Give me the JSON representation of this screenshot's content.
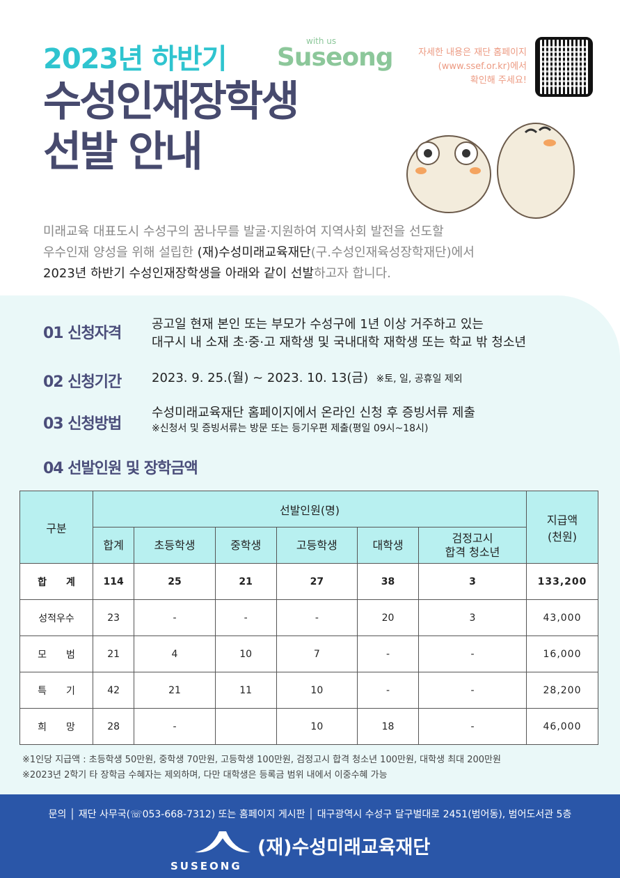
{
  "header": {
    "subtitle": "2023년 하반기",
    "brand_small": "with us",
    "brand": "Suseong",
    "title_line1": "수성인재장학생",
    "title_line2": "선발 안내",
    "notice": [
      "자세한 내용은 재단 홈페이지",
      "(www.ssef.or.kr)에서",
      "확인해 주세요!"
    ]
  },
  "intro": {
    "line1": "미래교육 대표도시 수성구의 꿈나무를 발굴·지원하여 지역사회 발전을 선도할",
    "line2a": "우수인재 양성을 위해 설립한 ",
    "line2b": "(재)수성미래교육재단",
    "line2c": "(구.수성인재육성장학재단)에서",
    "line3a": "2023년 하반기 수성인재장학생을 아래와 같이 선발",
    "line3b": "하고자 합니다."
  },
  "sections": [
    {
      "title": "01 신청자격",
      "lines": [
        "공고일 현재 본인 또는 부모가 수성구에 1년 이상 거주하고 있는",
        "대구시 내 소재 초·중·고 재학생 및 국내대학 재학생 또는 학교 밖 청소년"
      ]
    },
    {
      "title": "02 신청기간",
      "lines": [
        "2023. 9. 25.(월) ~ 2023. 10. 13(금)",
        "※토, 일, 공휴일 제외"
      ]
    },
    {
      "title": "03 신청방법",
      "lines": [
        "수성미래교육재단 홈페이지에서 온라인 신청 후 증빙서류 제출",
        "※신청서 및 증빙서류는 방문 또는 등기우편 제출(평일 09시~18시)"
      ]
    },
    {
      "title": "04 선발인원 및 장학금액"
    }
  ],
  "table": {
    "col_category": "구분",
    "group": "선발인원(명)",
    "amount": "지급액\n(천원)",
    "cols": [
      "합계",
      "초등학생",
      "중학생",
      "고등학생",
      "대학생",
      "검정고시\n합격 청소년"
    ],
    "rows": [
      {
        "label": "합　　계",
        "cells": [
          "114",
          "25",
          "21",
          "27",
          "38",
          "3",
          "133,200"
        ]
      },
      {
        "label": "성적우수",
        "cells": [
          "23",
          "-",
          "-",
          "-",
          "20",
          "3",
          "43,000"
        ]
      },
      {
        "label": "모　　범",
        "cells": [
          "21",
          "4",
          "10",
          "7",
          "-",
          "-",
          "16,000"
        ]
      },
      {
        "label": "특　　기",
        "cells": [
          "42",
          "21",
          "11",
          "10",
          "-",
          "-",
          "28,200"
        ]
      },
      {
        "label": "희　　망",
        "cells": [
          "28",
          "-",
          "",
          "10",
          "18",
          "-",
          "46,000"
        ]
      }
    ]
  },
  "footnotes": [
    "※1인당 지급액 : 초등학생 50만원, 중학생 70만원, 고등학생 100만원, 검정고시 합격 청소년 100만원, 대학생 최대 200만원",
    "※2023년 2학기 타 장학금 수혜자는 제외하며, 다만 대학생은 등록금 범위 내에서 이중수혜 가능"
  ],
  "footer": {
    "contact": "문의 │ 재단 사무국(☏053-668-7312) 또는 홈페이지 게시판 │ 대구광역시 수성구 달구벌대로 2451(범어동), 범어도서관 5층",
    "org": "(재)수성미래교육재단",
    "logo_text": "SUSEONG"
  },
  "colors": {
    "teal": "#2fc4cf",
    "navy": "#474a6e",
    "table_header": "#b8f0f0",
    "footer": "#2a56a8",
    "notice": "#ec9a82"
  }
}
